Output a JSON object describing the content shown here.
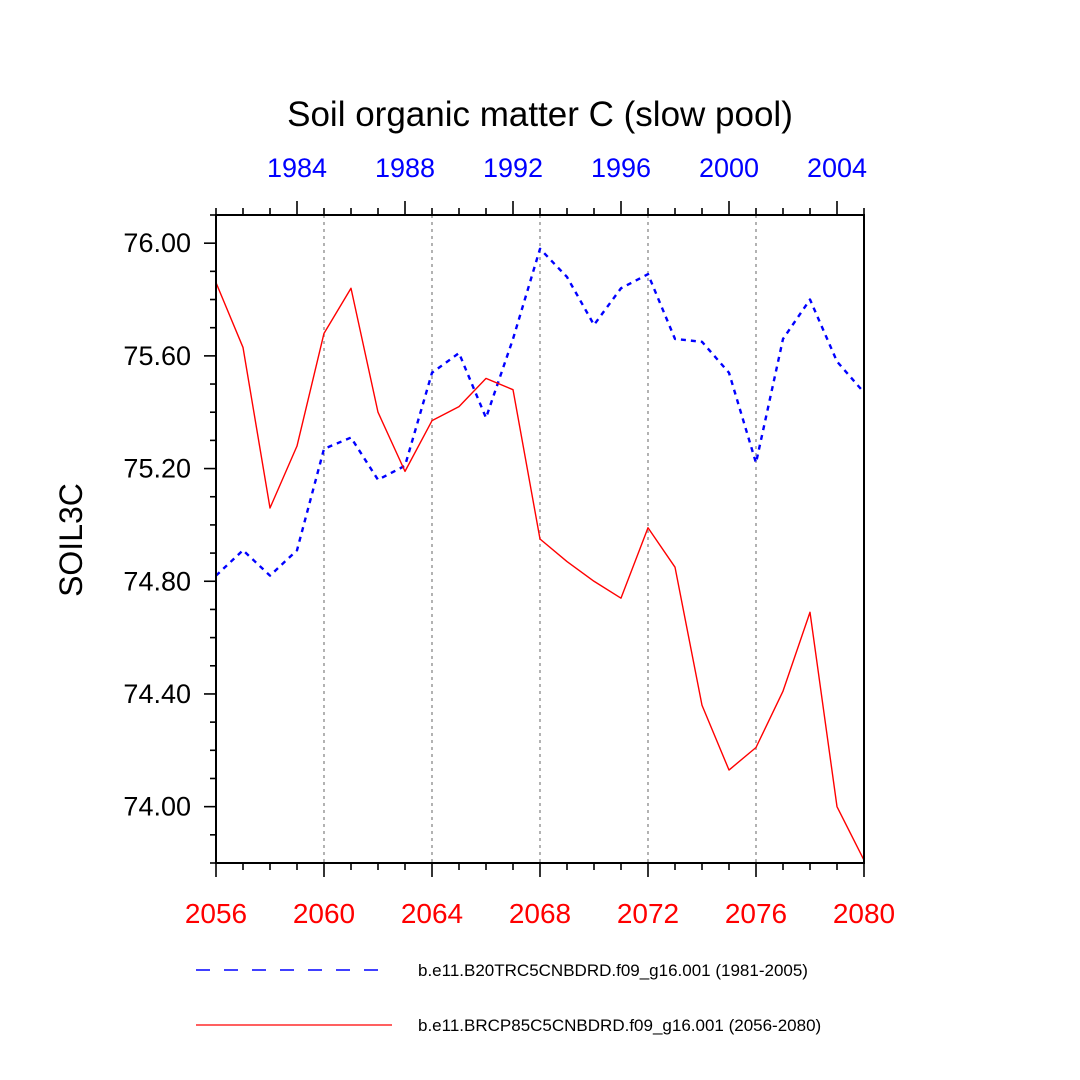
{
  "chart_data": {
    "type": "line",
    "title": "Soil organic matter C (slow pool)",
    "ylabel": "SOIL3C",
    "xlabel": "",
    "ylim": [
      73.8,
      76.1
    ],
    "yticks": [
      74.0,
      74.4,
      74.8,
      75.2,
      75.6,
      76.0
    ],
    "ytick_labels": [
      "74.00",
      "74.40",
      "74.80",
      "75.20",
      "75.60",
      "76.00"
    ],
    "grid": "dotted vertical lines at major x ticks",
    "legend_position": "bottom",
    "x_bottom": {
      "range": [
        2056,
        2080
      ],
      "ticks": [
        2056,
        2060,
        2064,
        2068,
        2072,
        2076,
        2080
      ],
      "color": "#ff0000"
    },
    "x_top": {
      "range": [
        1981,
        2005
      ],
      "ticks": [
        1984,
        1988,
        1992,
        1996,
        2000,
        2004
      ],
      "color": "#0000ff"
    },
    "series": [
      {
        "name": "b.e11.B20TRC5CNBDRD.f09_g16.001 (1981-2005)",
        "color": "#0000ff",
        "style": "dashed",
        "axis": "top",
        "x": [
          1981,
          1982,
          1983,
          1984,
          1985,
          1986,
          1987,
          1988,
          1989,
          1990,
          1991,
          1992,
          1993,
          1994,
          1995,
          1996,
          1997,
          1998,
          1999,
          2000,
          2001,
          2002,
          2003,
          2004,
          2005
        ],
        "values": [
          74.82,
          74.91,
          74.82,
          74.91,
          75.27,
          75.31,
          75.16,
          75.21,
          75.54,
          75.61,
          75.38,
          75.66,
          75.98,
          75.88,
          75.71,
          75.84,
          75.89,
          75.66,
          75.65,
          75.54,
          75.22,
          75.66,
          75.8,
          75.58,
          75.47
        ]
      },
      {
        "name": "b.e11.BRCP85C5CNBDRD.f09_g16.001 (2056-2080)",
        "color": "#ff0000",
        "style": "solid",
        "axis": "bottom",
        "x": [
          2056,
          2057,
          2058,
          2059,
          2060,
          2061,
          2062,
          2063,
          2064,
          2065,
          2066,
          2067,
          2068,
          2069,
          2070,
          2071,
          2072,
          2073,
          2074,
          2075,
          2076,
          2077,
          2078,
          2079,
          2080
        ],
        "values": [
          75.86,
          75.63,
          75.06,
          75.28,
          75.68,
          75.84,
          75.4,
          75.19,
          75.37,
          75.42,
          75.52,
          75.48,
          74.95,
          74.87,
          74.8,
          74.74,
          74.99,
          74.85,
          74.36,
          74.13,
          74.21,
          74.41,
          74.69,
          74.0,
          73.81
        ]
      }
    ]
  }
}
